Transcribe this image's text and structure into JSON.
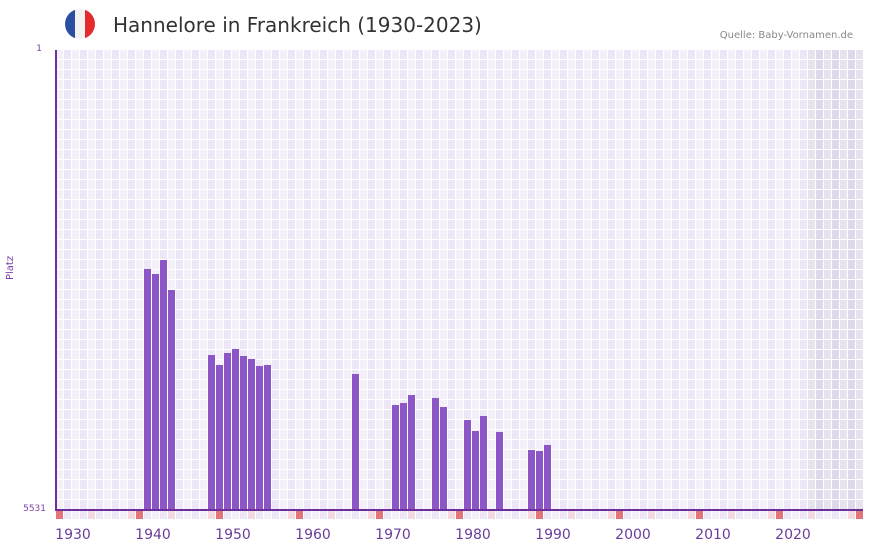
{
  "header": {
    "title": "Hannelore in Frankreich (1930-2023)",
    "source": "Quelle: Baby-Vornamen.de",
    "flag_colors": [
      "#2b4fa0",
      "#f2f2f2",
      "#e52a2e"
    ]
  },
  "colors": {
    "bar": "#8d56c6",
    "axis": "#6a2f9a",
    "grid_a": "#f3effb",
    "grid_b": "#ece6f7",
    "future_a": "#e6e2ee",
    "future_b": "#ddd8ea",
    "marker_strong": "#e5737a",
    "marker_light": "#f5d8e0"
  },
  "chart_data": {
    "type": "bar",
    "title": "Hannelore in Frankreich (1930-2023)",
    "xlabel": "",
    "ylabel": "Platz",
    "y_inverted": true,
    "ylim": [
      1,
      5531
    ],
    "y_ticks": [
      "1",
      "5531"
    ],
    "x_range": [
      1930,
      2030
    ],
    "x_ticks": [
      "1930",
      "1940",
      "1950",
      "1960",
      "1970",
      "1980",
      "1990",
      "2000",
      "2010",
      "2020"
    ],
    "grid": true,
    "shaded_future_from": 2024,
    "points": [
      {
        "year": 1941,
        "rank": 2628
      },
      {
        "year": 1942,
        "rank": 2688
      },
      {
        "year": 1943,
        "rank": 2520
      },
      {
        "year": 1944,
        "rank": 2881
      },
      {
        "year": 1949,
        "rank": 3663
      },
      {
        "year": 1950,
        "rank": 3784
      },
      {
        "year": 1951,
        "rank": 3640
      },
      {
        "year": 1952,
        "rank": 3592
      },
      {
        "year": 1953,
        "rank": 3676
      },
      {
        "year": 1954,
        "rank": 3712
      },
      {
        "year": 1955,
        "rank": 3796
      },
      {
        "year": 1956,
        "rank": 3784
      },
      {
        "year": 1967,
        "rank": 3892
      },
      {
        "year": 1972,
        "rank": 4265
      },
      {
        "year": 1973,
        "rank": 4241
      },
      {
        "year": 1974,
        "rank": 4145
      },
      {
        "year": 1977,
        "rank": 4181
      },
      {
        "year": 1978,
        "rank": 4289
      },
      {
        "year": 1981,
        "rank": 4445
      },
      {
        "year": 1982,
        "rank": 4578
      },
      {
        "year": 1983,
        "rank": 4397
      },
      {
        "year": 1985,
        "rank": 4590
      },
      {
        "year": 1989,
        "rank": 4806
      },
      {
        "year": 1990,
        "rank": 4818
      },
      {
        "year": 1991,
        "rank": 4746
      }
    ]
  }
}
